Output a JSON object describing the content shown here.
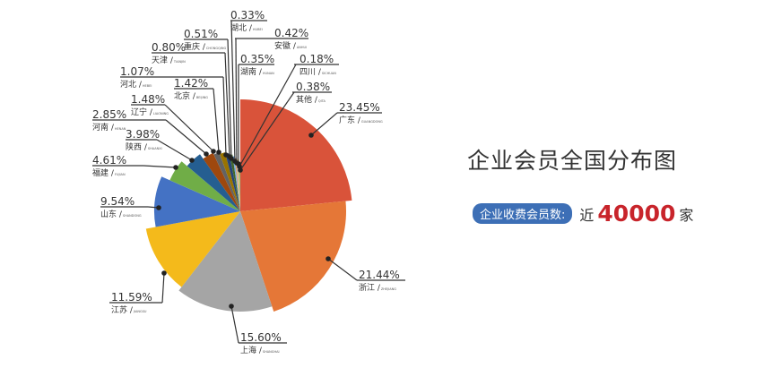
{
  "title": "企业会员全国分布图",
  "subtitle": {
    "badge": "企业收费会员数:",
    "prefix": "近",
    "number": "40000",
    "suffix": "家"
  },
  "chart_data": {
    "type": "pie",
    "title": "",
    "slices": [
      {
        "label": "广东",
        "pinyin": "GUANGDONG",
        "value": 23.45,
        "text": "23.45%",
        "color": "#d9533a"
      },
      {
        "label": "浙江",
        "pinyin": "ZHEJIANG",
        "value": 21.44,
        "text": "21.44%",
        "color": "#e57737"
      },
      {
        "label": "上海",
        "pinyin": "SHANGHAI",
        "value": 15.6,
        "text": "15.60%",
        "color": "#a5a5a5"
      },
      {
        "label": "江苏",
        "pinyin": "JIANGSU",
        "value": 11.59,
        "text": "11.59%",
        "color": "#f4ba1b"
      },
      {
        "label": "山东",
        "pinyin": "SHANDONG",
        "value": 9.54,
        "text": "9.54%",
        "color": "#4472c4"
      },
      {
        "label": "福建",
        "pinyin": "FUJIAN",
        "value": 4.61,
        "text": "4.61%",
        "color": "#70ad47"
      },
      {
        "label": "陕西",
        "pinyin": "SHAANXI",
        "value": 3.98,
        "text": "3.98%",
        "color": "#255e91"
      },
      {
        "label": "河南",
        "pinyin": "HENAN",
        "value": 2.85,
        "text": "2.85%",
        "color": "#9e480e"
      },
      {
        "label": "辽宁",
        "pinyin": "LIAONING",
        "value": 1.48,
        "text": "1.48%",
        "color": "#636363"
      },
      {
        "label": "北京",
        "pinyin": "BEIJING",
        "value": 1.42,
        "text": "1.42%",
        "color": "#997300"
      },
      {
        "label": "河北",
        "pinyin": "HEBEI",
        "value": 1.07,
        "text": "1.07%",
        "color": "#264478"
      },
      {
        "label": "天津",
        "pinyin": "TIANJIN",
        "value": 0.8,
        "text": "0.80%",
        "color": "#43682b"
      },
      {
        "label": "重庆",
        "pinyin": "CHONGQING",
        "value": 0.51,
        "text": "0.51%",
        "color": "#7cafdd"
      },
      {
        "label": "湖北",
        "pinyin": "HUBEI",
        "value": 0.33,
        "text": "0.33%",
        "color": "#f1975a"
      },
      {
        "label": "安徽",
        "pinyin": "ANHUI",
        "value": 0.42,
        "text": "0.42%",
        "color": "#b7b7b7"
      },
      {
        "label": "湖南",
        "pinyin": "HUNAN",
        "value": 0.35,
        "text": "0.35%",
        "color": "#ffcd33"
      },
      {
        "label": "四川",
        "pinyin": "SICHUAN",
        "value": 0.18,
        "text": "0.18%",
        "color": "#698ed0"
      },
      {
        "label": "其他",
        "pinyin": "QITA",
        "value": 0.38,
        "text": "0.38%",
        "color": "#8cc168"
      }
    ]
  }
}
